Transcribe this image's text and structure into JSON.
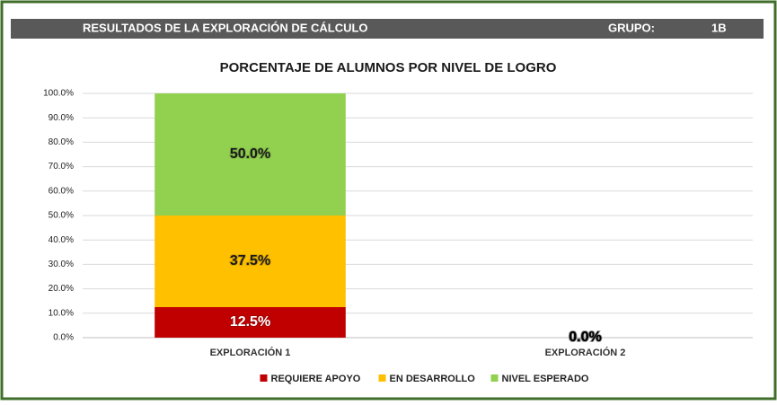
{
  "header": {
    "title": "RESULTADOS DE LA EXPLORACIÓN DE CÁLCULO",
    "group_label": "GRUPO:",
    "group": "1B"
  },
  "chart_data": {
    "type": "stacked_bar",
    "title": "PORCENTAJE DE ALUMNOS POR NIVEL DE LOGRO",
    "categories": [
      "EXPLORACIÓN 1",
      "EXPLORACIÓN 2"
    ],
    "series": [
      {
        "name": "REQUIERE APOYO",
        "color": "#c00000",
        "label_color": "#ffffff",
        "values": [
          12.5,
          0
        ],
        "value_labels": [
          "12.5%",
          "0.0%"
        ]
      },
      {
        "name": "EN DESARROLLO",
        "color": "#ffc000",
        "label_color": "#1a1a1a",
        "values": [
          37.5,
          0
        ],
        "value_labels": [
          "37.5%",
          "0.0%"
        ]
      },
      {
        "name": "NIVEL ESPERADO",
        "color": "#92d050",
        "label_color": "#1a1a1a",
        "values": [
          50,
          0
        ],
        "value_labels": [
          "50.0%",
          "0.0%"
        ]
      }
    ],
    "ylim": [
      0,
      100
    ],
    "yticks": [
      {
        "value": 0,
        "label": "0.0%"
      },
      {
        "value": 10,
        "label": "10.0%"
      },
      {
        "value": 20,
        "label": "20.0%"
      },
      {
        "value": 30,
        "label": "30.0%"
      },
      {
        "value": 40,
        "label": "40.0%"
      },
      {
        "value": 50,
        "label": "50.0%"
      },
      {
        "value": 60,
        "label": "60.0%"
      },
      {
        "value": 70,
        "label": "70.0%"
      },
      {
        "value": 80,
        "label": "80.0%"
      },
      {
        "value": 90,
        "label": "90.0%"
      },
      {
        "value": 100,
        "label": "100.0%"
      }
    ],
    "grid": true,
    "legend": "bottom"
  }
}
